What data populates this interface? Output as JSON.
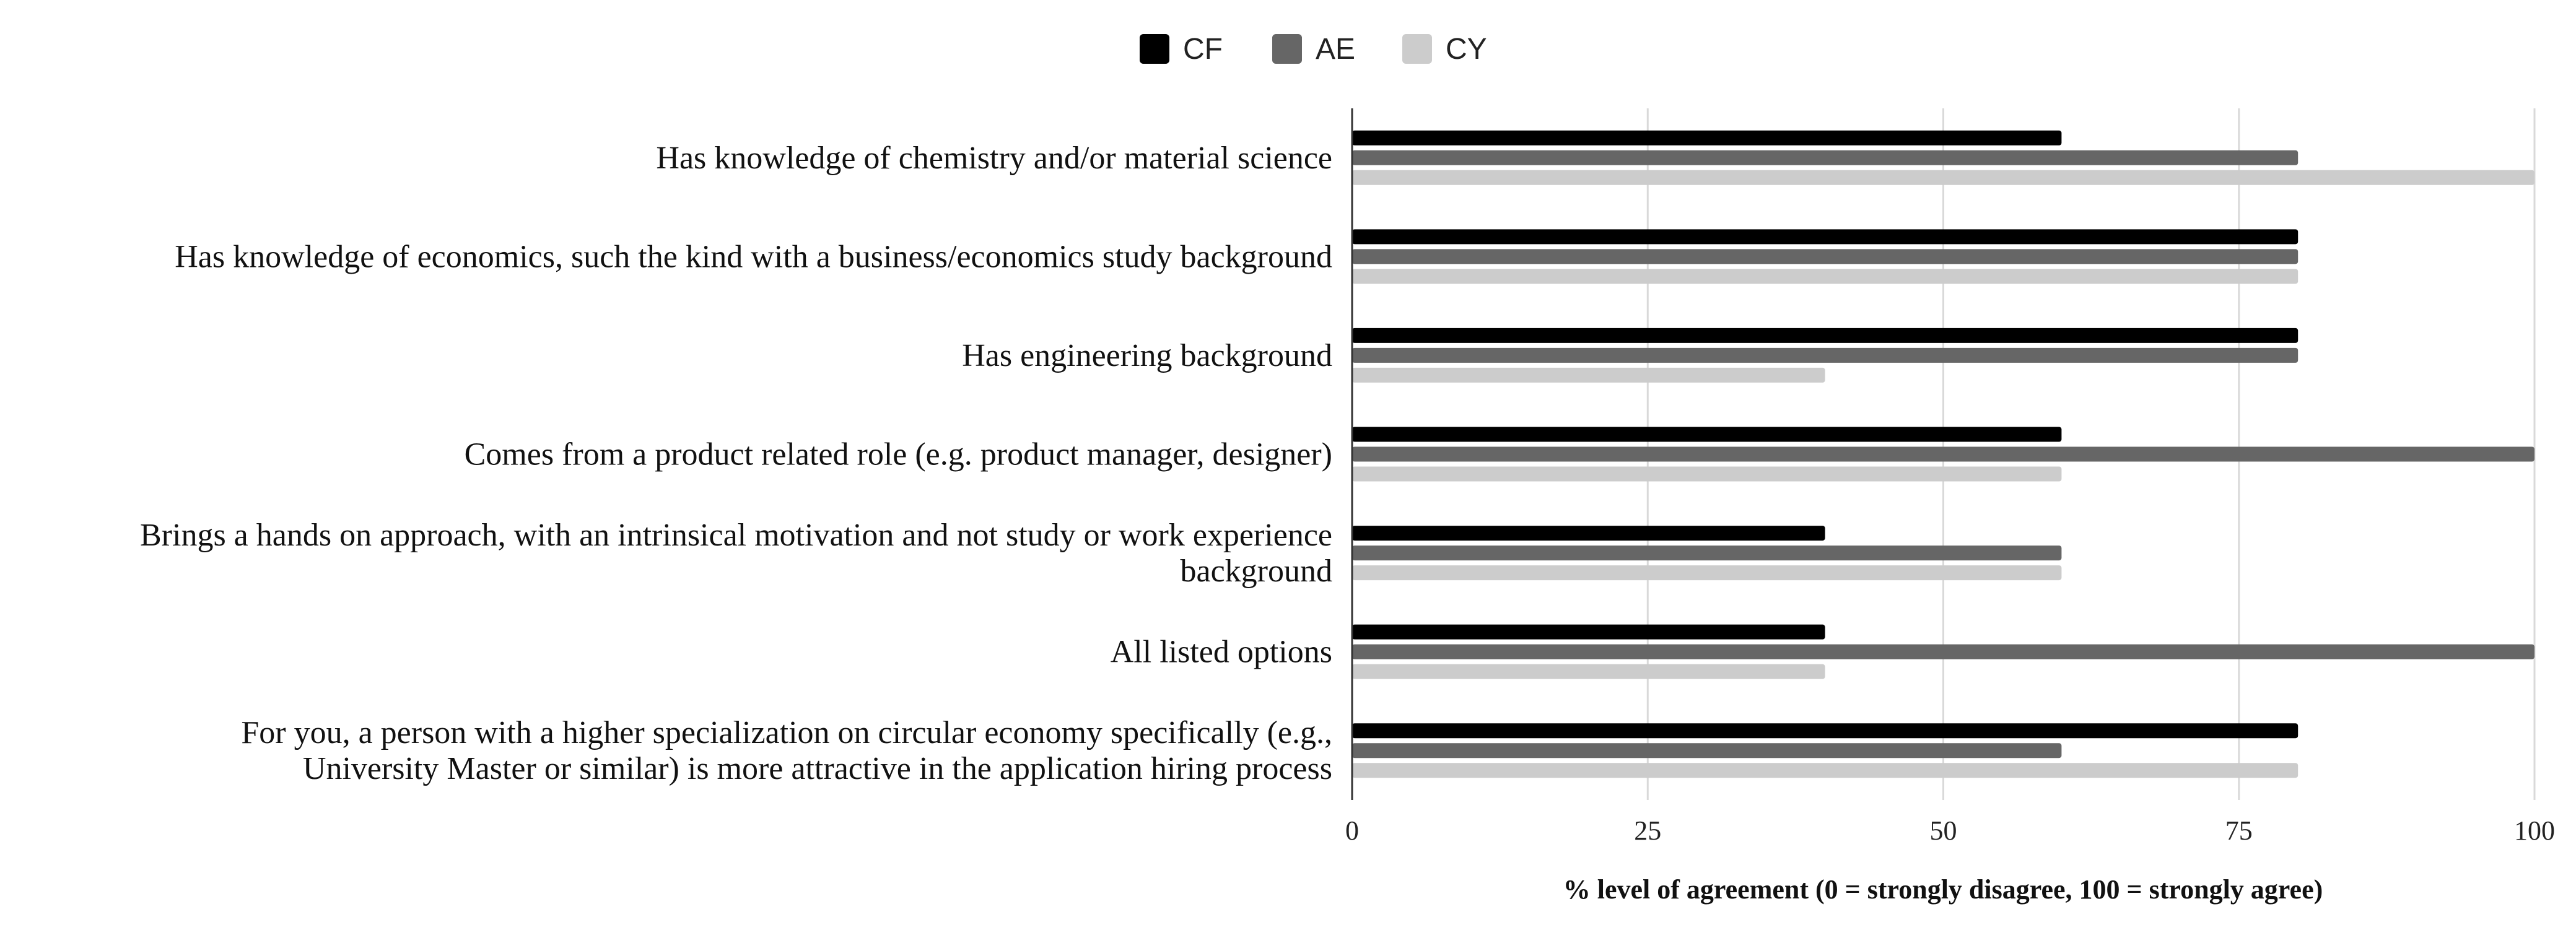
{
  "chart_data": {
    "type": "bar",
    "orientation": "horizontal",
    "categories": [
      "Has knowledge of chemistry and/or material science",
      "Has knowledge of economics, such the kind with a business/economics study background",
      "Has engineering background",
      "Comes from a product related role (e.g. product manager, designer)",
      "Brings a hands on approach, with an intrinsical motivation and not study or work experience background",
      "All listed options",
      "For you, a person with a higher specialization on circular economy specifically (e.g., University Master or similar) is more attractive in the application hiring process"
    ],
    "category_lines": [
      [
        "Has knowledge of chemistry and/or material science"
      ],
      [
        "Has knowledge of economics, such the kind with a business/economics study background"
      ],
      [
        "Has engineering background"
      ],
      [
        "Comes from a product related role (e.g. product manager, designer)"
      ],
      [
        "Brings a hands on approach, with an intrinsical motivation and not study or work experience",
        "background"
      ],
      [
        "All listed options"
      ],
      [
        "For you, a person with a higher specialization on circular economy specifically (e.g.,",
        "University Master or similar) is more attractive in the application hiring process"
      ]
    ],
    "series": [
      {
        "name": "CF",
        "color": "#000000",
        "values": [
          60,
          80,
          80,
          60,
          40,
          40,
          80
        ]
      },
      {
        "name": "AE",
        "color": "#666666",
        "values": [
          80,
          80,
          80,
          100,
          60,
          100,
          60
        ]
      },
      {
        "name": "CY",
        "color": "#cccccc",
        "values": [
          100,
          80,
          40,
          60,
          60,
          40,
          80
        ]
      }
    ],
    "xlabel": "% level of agreement (0 = strongly disagree, 100 = strongly agree)",
    "xlim": [
      0,
      100
    ],
    "xticks": [
      0,
      25,
      50,
      75,
      100
    ],
    "grid": true,
    "legend": "top-center"
  }
}
